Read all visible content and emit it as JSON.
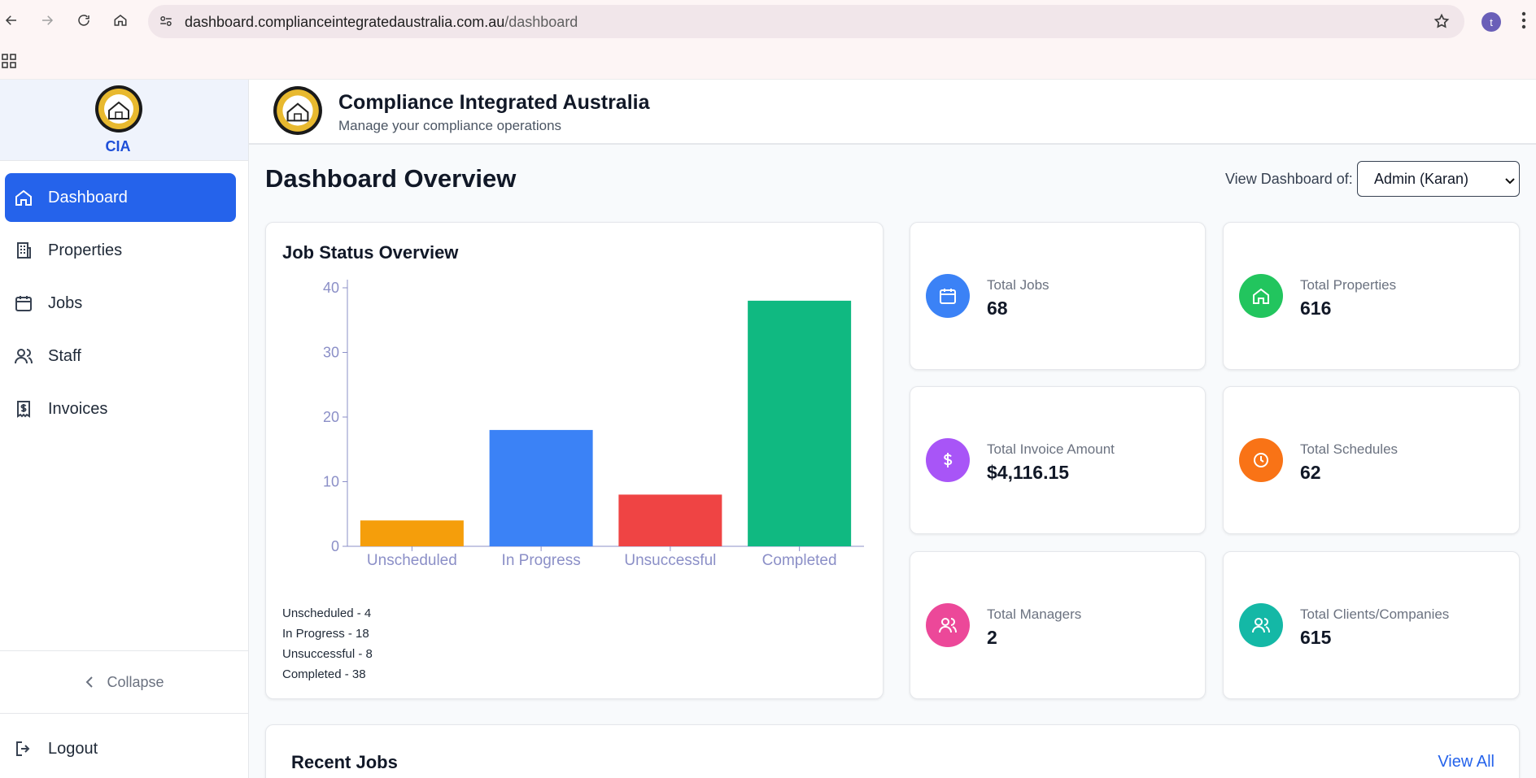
{
  "browser": {
    "url_host": "dashboard.complianceintegratedaustralia.com.au",
    "url_path": "/dashboard",
    "profile_initial": "t"
  },
  "sidebar": {
    "brand": "CIA",
    "items": [
      {
        "label": "Dashboard",
        "icon": "home-icon",
        "active": true
      },
      {
        "label": "Properties",
        "icon": "building-icon"
      },
      {
        "label": "Jobs",
        "icon": "calendar-icon"
      },
      {
        "label": "Staff",
        "icon": "users-icon"
      },
      {
        "label": "Invoices",
        "icon": "receipt-icon"
      }
    ],
    "collapse_label": "Collapse",
    "logout_label": "Logout"
  },
  "header": {
    "title": "Compliance Integrated Australia",
    "subtitle": "Manage your compliance operations"
  },
  "page": {
    "title": "Dashboard Overview",
    "view_label": "View Dashboard of:",
    "view_value": "Admin (Karan)"
  },
  "chart_card": {
    "title": "Job Status Overview",
    "legend": [
      "Unscheduled - 4",
      "In Progress - 18",
      "Unsuccessful - 8",
      "Completed - 38"
    ]
  },
  "chart_data": {
    "type": "bar",
    "categories": [
      "Unscheduled",
      "In Progress",
      "Unsuccessful",
      "Completed"
    ],
    "values": [
      4,
      18,
      8,
      38
    ],
    "colors": [
      "#f59e0b",
      "#3b82f6",
      "#ef4444",
      "#10b981"
    ],
    "ylim": [
      0,
      40
    ],
    "yticks": [
      0,
      10,
      20,
      30,
      40
    ],
    "title": "",
    "xlabel": "",
    "ylabel": ""
  },
  "stats": [
    {
      "label": "Total Jobs",
      "value": "68",
      "color": "#3b82f6",
      "icon": "calendar-icon"
    },
    {
      "label": "Total Properties",
      "value": "616",
      "color": "#22c55e",
      "icon": "home-icon"
    },
    {
      "label": "Total Invoice Amount",
      "value": "$4,116.15",
      "color": "#a855f7",
      "icon": "dollar-icon"
    },
    {
      "label": "Total Schedules",
      "value": "62",
      "color": "#f97316",
      "icon": "clock-icon"
    },
    {
      "label": "Total Managers",
      "value": "2",
      "color": "#ec4899",
      "icon": "users-icon"
    },
    {
      "label": "Total Clients/Companies",
      "value": "615",
      "color": "#14b8a6",
      "icon": "users-icon"
    }
  ],
  "recent_jobs": {
    "title": "Recent Jobs",
    "view_all_label": "View All"
  }
}
